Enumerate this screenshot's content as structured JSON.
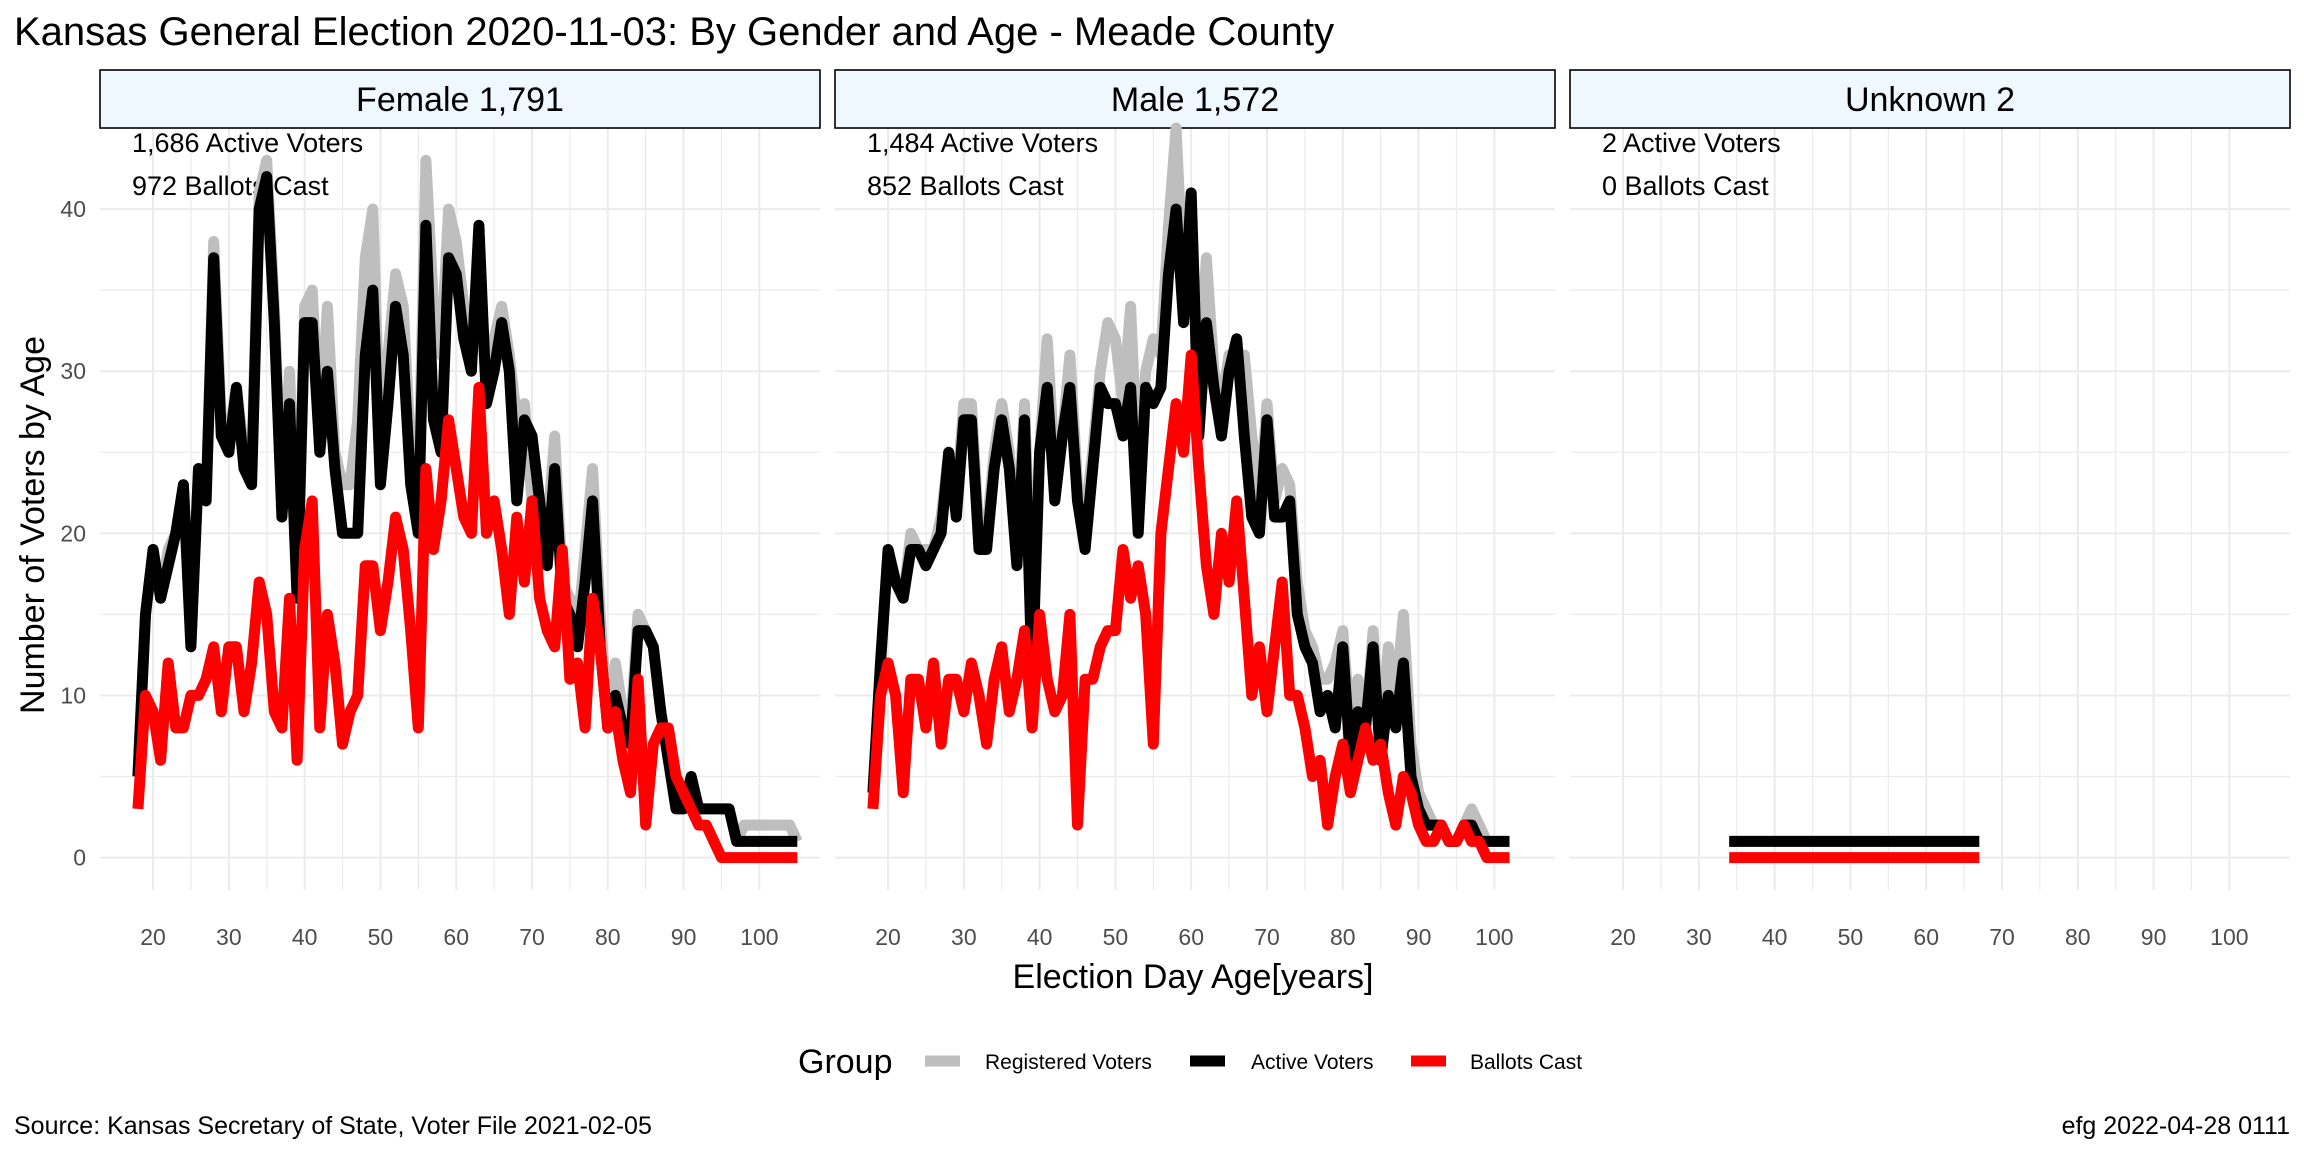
{
  "title": "Kansas General Election 2020-11-03:  By Gender and Age - Meade County",
  "xlabel": "Election Day Age[years]",
  "ylabel": "Number of Voters by Age",
  "source": "Source:  Kansas Secretary of State, Voter File  2021-02-05",
  "stamp": "efg 2022-04-28 0111",
  "legend": {
    "title": "Group",
    "items": [
      {
        "label": "Registered Voters",
        "color": "#bebebe"
      },
      {
        "label": "Active Voters",
        "color": "#000000"
      },
      {
        "label": "Ballots Cast",
        "color": "#ff0000"
      }
    ]
  },
  "colors": {
    "strip_fill": "#f0f8ff",
    "grid": "#ebebeb"
  },
  "chart_data": {
    "type": "line",
    "xlim": [
      13,
      108
    ],
    "ylim": [
      -2,
      45
    ],
    "x_ticks": [
      20,
      30,
      40,
      50,
      60,
      70,
      80,
      90,
      100
    ],
    "y_ticks": [
      0,
      10,
      20,
      30,
      40
    ],
    "panels": [
      {
        "strip": "Female 1,791",
        "annotations": [
          "1,686 Active Voters",
          "972 Ballots Cast"
        ],
        "x": [
          18,
          19,
          20,
          21,
          22,
          23,
          24,
          25,
          26,
          27,
          28,
          29,
          30,
          31,
          32,
          33,
          34,
          35,
          36,
          37,
          38,
          39,
          40,
          41,
          42,
          43,
          44,
          45,
          46,
          47,
          48,
          49,
          50,
          51,
          52,
          53,
          54,
          55,
          56,
          57,
          58,
          59,
          60,
          61,
          62,
          63,
          64,
          65,
          66,
          67,
          68,
          69,
          70,
          71,
          72,
          73,
          74,
          75,
          76,
          77,
          78,
          79,
          80,
          81,
          82,
          83,
          84,
          85,
          86,
          87,
          88,
          89,
          90,
          91,
          92,
          93,
          94,
          95,
          96,
          97,
          98,
          99,
          100,
          101,
          102,
          103,
          104,
          105
        ],
        "series": [
          {
            "name": "Registered Voters",
            "values": [
              5,
              15,
              19,
              16,
              19,
              20,
              23,
              13,
              24,
              22,
              38,
              27,
              26,
              29,
              25,
              24,
              41,
              43,
              34,
              22,
              30,
              17,
              34,
              35,
              26,
              34,
              25,
              23,
              23,
              27,
              37,
              40,
              25,
              31,
              36,
              34,
              25,
              22,
              43,
              34,
              31,
              40,
              38,
              34,
              32,
              35,
              29,
              32,
              34,
              31,
              27,
              28,
              22,
              20,
              20,
              26,
              17,
              16,
              14,
              19,
              24,
              15,
              8,
              12,
              9,
              8,
              15,
              14,
              13,
              9,
              6,
              4,
              3,
              4,
              3,
              3,
              3,
              3,
              3,
              1,
              2,
              2,
              2,
              2,
              2,
              2,
              2,
              1
            ],
            "color": "#bebebe"
          },
          {
            "name": "Active Voters",
            "values": [
              5,
              15,
              19,
              16,
              18,
              20,
              23,
              13,
              24,
              22,
              37,
              26,
              25,
              29,
              24,
              23,
              40,
              42,
              33,
              21,
              28,
              16,
              33,
              33,
              25,
              30,
              24,
              20,
              20,
              20,
              31,
              35,
              23,
              28,
              34,
              31,
              23,
              20,
              39,
              27,
              25,
              37,
              36,
              32,
              30,
              39,
              28,
              30,
              33,
              30,
              22,
              27,
              26,
              22,
              18,
              24,
              16,
              15,
              13,
              17,
              22,
              13,
              8,
              10,
              8,
              7,
              14,
              14,
              13,
              9,
              6,
              3,
              3,
              5,
              3,
              3,
              3,
              3,
              3,
              1,
              1,
              1,
              1,
              1,
              1,
              1,
              1,
              1
            ],
            "color": "#000000"
          },
          {
            "name": "Ballots Cast",
            "values": [
              3,
              10,
              9,
              6,
              12,
              8,
              8,
              10,
              10,
              11,
              13,
              9,
              13,
              13,
              9,
              12,
              17,
              15,
              9,
              8,
              16,
              6,
              19,
              22,
              8,
              15,
              12,
              7,
              9,
              10,
              18,
              18,
              14,
              17,
              21,
              19,
              14,
              8,
              24,
              19,
              22,
              27,
              24,
              21,
              20,
              29,
              20,
              22,
              19,
              15,
              21,
              17,
              22,
              16,
              14,
              13,
              19,
              11,
              12,
              8,
              16,
              13,
              8,
              9,
              6,
              4,
              11,
              2,
              7,
              8,
              8,
              5,
              4,
              3,
              2,
              2,
              1,
              0,
              0,
              0,
              0,
              0,
              0,
              0,
              0,
              0,
              0,
              0
            ],
            "color": "#ff0000"
          }
        ]
      },
      {
        "strip": "Male 1,572",
        "annotations": [
          "1,484 Active Voters",
          "852 Ballots Cast"
        ],
        "x": [
          18,
          19,
          20,
          21,
          22,
          23,
          24,
          25,
          26,
          27,
          28,
          29,
          30,
          31,
          32,
          33,
          34,
          35,
          36,
          37,
          38,
          39,
          40,
          41,
          42,
          43,
          44,
          45,
          46,
          47,
          48,
          49,
          50,
          51,
          52,
          53,
          54,
          55,
          56,
          57,
          58,
          59,
          60,
          61,
          62,
          63,
          64,
          65,
          66,
          67,
          68,
          69,
          70,
          71,
          72,
          73,
          74,
          75,
          76,
          77,
          78,
          79,
          80,
          81,
          82,
          83,
          84,
          85,
          86,
          87,
          88,
          89,
          90,
          91,
          92,
          93,
          94,
          95,
          96,
          97,
          98,
          99,
          100,
          101,
          102
        ],
        "series": [
          {
            "name": "Registered Voters",
            "values": [
              4,
              12,
              19,
              17,
              16,
              20,
              19,
              19,
              19,
              21,
              25,
              22,
              28,
              28,
              20,
              20,
              25,
              28,
              25,
              19,
              28,
              15,
              25,
              32,
              24,
              26,
              31,
              23,
              21,
              25,
              30,
              33,
              32,
              28,
              34,
              23,
              30,
              32,
              31,
              39,
              45,
              35,
              40,
              29,
              37,
              30,
              28,
              31,
              30,
              31,
              26,
              22,
              28,
              22,
              24,
              23,
              17,
              14,
              13,
              11,
              11,
              12,
              14,
              8,
              11,
              8,
              14,
              7,
              13,
              10,
              15,
              7,
              4,
              3,
              2,
              2,
              1,
              1,
              2,
              3,
              2,
              1,
              1,
              1,
              1
            ],
            "color": "#bebebe"
          },
          {
            "name": "Active Voters",
            "values": [
              4,
              12,
              19,
              17,
              16,
              19,
              19,
              18,
              19,
              20,
              25,
              21,
              27,
              27,
              19,
              19,
              24,
              27,
              24,
              18,
              27,
              11,
              25,
              29,
              22,
              26,
              29,
              22,
              19,
              24,
              29,
              28,
              28,
              26,
              29,
              20,
              29,
              28,
              29,
              36,
              40,
              33,
              41,
              26,
              33,
              29,
              26,
              30,
              32,
              26,
              21,
              20,
              27,
              21,
              21,
              22,
              15,
              13,
              12,
              9,
              10,
              8,
              13,
              6,
              9,
              8,
              13,
              6,
              10,
              8,
              12,
              5,
              3,
              2,
              2,
              2,
              1,
              1,
              2,
              2,
              1,
              1,
              1,
              1,
              1
            ],
            "color": "#000000"
          },
          {
            "name": "Ballots Cast",
            "values": [
              3,
              10,
              12,
              10,
              4,
              11,
              11,
              8,
              12,
              7,
              11,
              11,
              9,
              12,
              10,
              7,
              11,
              13,
              9,
              11,
              14,
              8,
              15,
              11,
              9,
              10,
              15,
              2,
              11,
              11,
              13,
              14,
              14,
              19,
              16,
              18,
              15,
              7,
              20,
              24,
              28,
              25,
              31,
              24,
              18,
              15,
              20,
              17,
              22,
              16,
              10,
              13,
              9,
              13,
              17,
              10,
              10,
              8,
              5,
              6,
              2,
              5,
              7,
              4,
              6,
              8,
              6,
              7,
              4,
              2,
              5,
              4,
              2,
              1,
              1,
              2,
              1,
              1,
              2,
              1,
              1,
              0,
              0,
              0,
              0
            ],
            "color": "#ff0000"
          }
        ]
      },
      {
        "strip": "Unknown 2",
        "annotations": [
          "2 Active Voters",
          "0 Ballots Cast"
        ],
        "x": [
          34,
          67
        ],
        "series": [
          {
            "name": "Registered Voters",
            "values": [
              1,
              1
            ],
            "color": "#bebebe"
          },
          {
            "name": "Active Voters",
            "values": [
              1,
              1
            ],
            "color": "#000000"
          },
          {
            "name": "Ballots Cast",
            "values": [
              0,
              0
            ],
            "color": "#ff0000"
          }
        ]
      }
    ]
  }
}
